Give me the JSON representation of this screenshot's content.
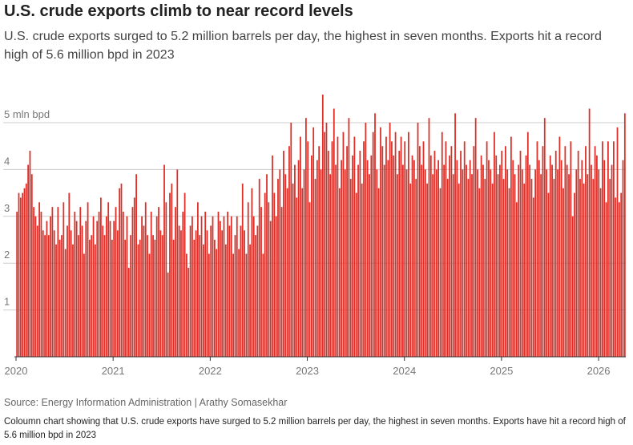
{
  "chart_data": {
    "type": "bar",
    "title": "U.S. crude exports climb to near record levels",
    "subtitle": "U.S. crude exports surged to 5.2 million barrels per day, the highest in seven months. Exports hit a record high of 5.6 million bpd in 2023",
    "source": "Source: Energy Information Administration | Arathy Somasekhar",
    "caption": "Coloumn chart showing that U.S. crude exports have surged to 5.2 million barrels per day, the highest in seven months. Exports have hit a record high of 5.6 million bpd in 2023",
    "color": "#dd2e27",
    "grid": true,
    "ylim": [
      0,
      5.6
    ],
    "yticks": [
      1,
      2,
      3,
      4,
      {
        "value": 5,
        "label": "5 mln bpd"
      }
    ],
    "xlim": [
      2020,
      2026.28
    ],
    "xticks": [
      2020,
      2021,
      2022,
      2023,
      2024,
      2025,
      2026
    ],
    "values": [
      3.1,
      3.5,
      3.4,
      3.5,
      3.6,
      3.7,
      4.1,
      4.4,
      3.9,
      3.2,
      3.0,
      2.8,
      3.3,
      3.1,
      2.7,
      2.6,
      2.9,
      2.6,
      3.0,
      3.2,
      2.7,
      2.4,
      3.2,
      2.5,
      2.6,
      3.3,
      2.3,
      2.8,
      3.5,
      2.7,
      2.4,
      3.1,
      2.9,
      2.6,
      3.2,
      2.8,
      2.2,
      2.9,
      3.3,
      2.5,
      2.6,
      3.0,
      2.4,
      2.9,
      3.1,
      3.4,
      2.8,
      2.6,
      3.0,
      3.3,
      2.9,
      2.5,
      2.9,
      3.2,
      2.7,
      3.6,
      3.7,
      3.1,
      2.5,
      3.0,
      1.9,
      2.6,
      3.2,
      3.4,
      3.9,
      2.4,
      2.5,
      3.0,
      2.8,
      3.3,
      2.6,
      2.2,
      3.1,
      2.6,
      2.5,
      3.0,
      3.2,
      2.7,
      2.6,
      4.1,
      3.3,
      1.8,
      3.5,
      3.7,
      2.5,
      3.2,
      4.0,
      2.8,
      2.7,
      3.1,
      3.5,
      2.2,
      1.9,
      2.8,
      3.0,
      2.5,
      2.7,
      3.3,
      2.6,
      3.0,
      2.4,
      3.1,
      2.7,
      2.2,
      2.8,
      3.0,
      2.5,
      2.3,
      3.1,
      2.9,
      2.7,
      3.0,
      2.4,
      3.1,
      2.8,
      3.0,
      2.2,
      2.6,
      3.0,
      2.3,
      2.8,
      3.7,
      2.7,
      2.2,
      3.3,
      2.4,
      3.6,
      3.0,
      2.6,
      2.8,
      3.8,
      3.2,
      2.2,
      3.5,
      3.9,
      3.3,
      2.9,
      4.3,
      3.5,
      3.0,
      3.8,
      4.0,
      3.2,
      4.4,
      3.9,
      3.6,
      4.5,
      5.0,
      3.7,
      4.1,
      3.4,
      4.2,
      4.7,
      3.6,
      4.0,
      5.1,
      4.6,
      3.3,
      4.3,
      4.9,
      3.8,
      4.2,
      4.5,
      4.0,
      5.6,
      4.8,
      5.0,
      4.4,
      3.9,
      4.6,
      5.3,
      4.1,
      4.7,
      3.6,
      4.2,
      4.8,
      4.0,
      4.5,
      5.1,
      3.8,
      4.3,
      4.7,
      3.5,
      4.1,
      4.4,
      3.7,
      4.6,
      5.0,
      4.2,
      3.9,
      4.3,
      4.8,
      5.2,
      4.0,
      3.6,
      4.9,
      4.5,
      4.1,
      4.7,
      4.2,
      5.0,
      4.6,
      4.3,
      4.8,
      3.9,
      4.4,
      4.7,
      4.1,
      4.6,
      4.0,
      4.8,
      3.7,
      4.3,
      4.2,
      3.8,
      5.0,
      4.5,
      4.1,
      4.6,
      4.0,
      3.7,
      5.1,
      4.3,
      3.9,
      4.4,
      4.0,
      4.2,
      3.6,
      4.8,
      4.1,
      4.6,
      3.8,
      4.3,
      4.5,
      3.9,
      5.2,
      4.2,
      3.7,
      4.4,
      4.0,
      4.6,
      4.1,
      3.8,
      4.2,
      3.9,
      4.5,
      5.1,
      4.0,
      3.6,
      4.3,
      4.1,
      3.8,
      4.6,
      4.2,
      4.0,
      3.7,
      4.8,
      4.3,
      3.9,
      4.1,
      4.4,
      3.8,
      4.5,
      4.0,
      3.6,
      4.7,
      4.2,
      3.9,
      3.3,
      4.1,
      4.4,
      4.0,
      3.7,
      4.3,
      4.8,
      4.1,
      3.8,
      3.4,
      4.0,
      4.6,
      4.2,
      3.9,
      4.5,
      5.1,
      4.0,
      3.5,
      4.3,
      4.1,
      3.8,
      4.4,
      4.0,
      4.7,
      4.2,
      3.6,
      4.5,
      4.1,
      3.9,
      4.6,
      3.0,
      3.5,
      4.0,
      4.4,
      3.8,
      4.2,
      3.7,
      4.5,
      3.9,
      5.3,
      4.1,
      3.8,
      4.5,
      4.3,
      4.0,
      3.6,
      4.6,
      4.2,
      3.3,
      4.6,
      3.8,
      4.1,
      4.6,
      3.4,
      4.9,
      3.3,
      3.5,
      4.2,
      5.2
    ]
  }
}
